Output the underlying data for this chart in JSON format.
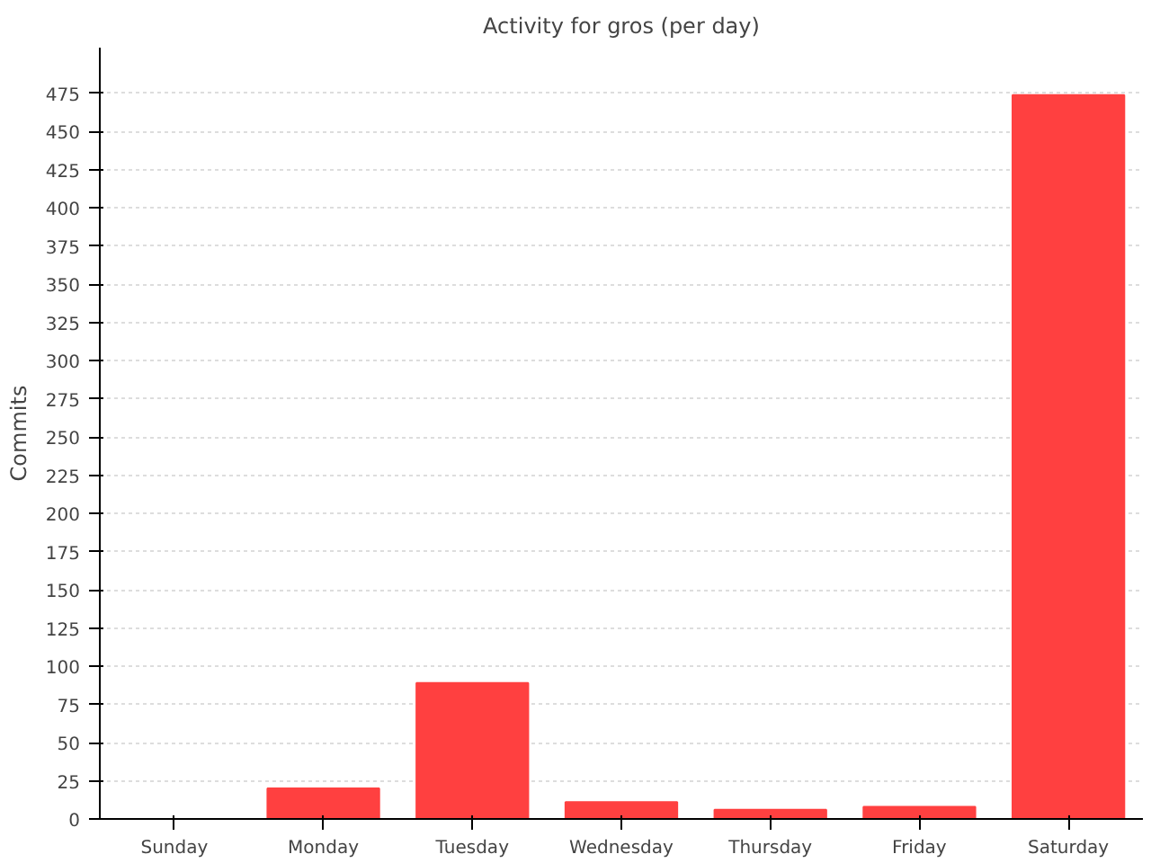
{
  "chart_data": {
    "type": "bar",
    "title": "Activity for gros (per day)",
    "ylabel": "Commits",
    "categories": [
      "Sunday",
      "Monday",
      "Tuesday",
      "Wednesday",
      "Thursday",
      "Friday",
      "Saturday"
    ],
    "values": [
      0,
      20,
      89,
      11,
      6,
      8,
      474
    ],
    "color": "#ff4040",
    "ylim": [
      0,
      505
    ],
    "yticks": [
      0,
      25,
      50,
      75,
      100,
      125,
      150,
      175,
      200,
      225,
      250,
      275,
      300,
      325,
      350,
      375,
      400,
      425,
      450,
      475
    ],
    "grid": "y"
  }
}
